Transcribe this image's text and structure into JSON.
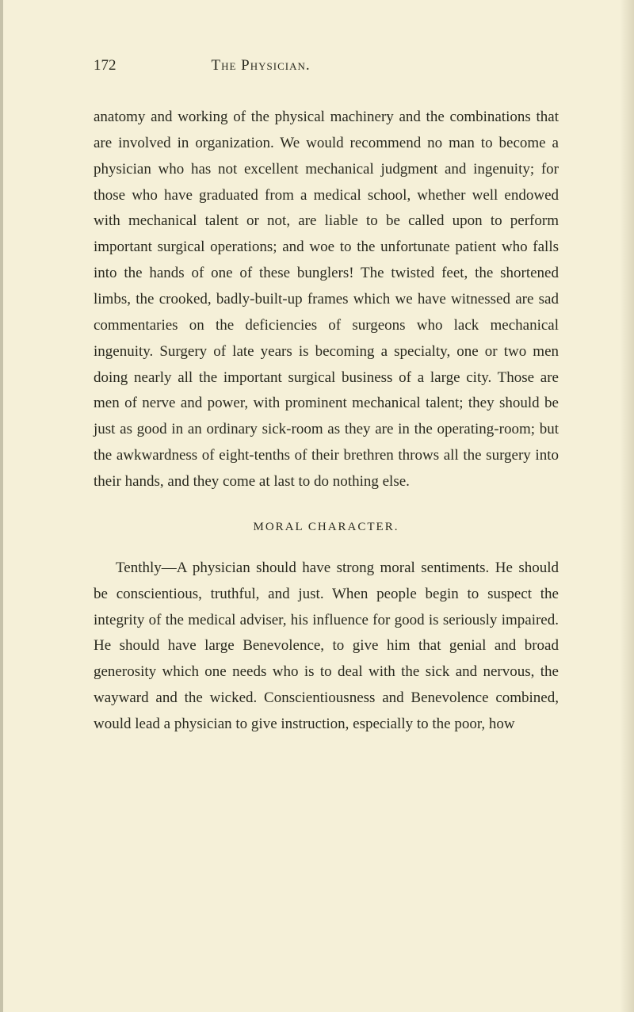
{
  "page_number": "172",
  "chapter_title": "The Physician.",
  "paragraph1": "anatomy and working of the physical machinery and the combinations that are involved in organization. We would recommend no man to become a physician who has not excellent mechanical judgment and ingenuity; for those who have graduated from a medical school, whether well endowed with mechanical talent or not, are liable to be called upon to perform important surgical operations; and woe to the unfortunate patient who falls into the hands of one of these bunglers! The twisted feet, the shortened limbs, the crooked, badly-built-up frames which we have witnessed are sad commentaries on the deficiencies of surgeons who lack mechanical ingenuity. Surgery of late years is becoming a specialty, one or two men doing nearly all the important surgical business of a large city. Those are men of nerve and power, with prominent mechanical talent; they should be just as good in an ordinary sick-room as they are in the operating-room; but the awkwardness of eight-tenths of their brethren throws all the surgery into their hands, and they come at last to do nothing else.",
  "section_heading": "MORAL CHARACTER.",
  "paragraph2": "Tenthly—A physician should have strong moral sentiments. He should be conscientious, truthful, and just. When people begin to suspect the integrity of the medical adviser, his influence for good is seriously impaired. He should have large Benevolence, to give him that genial and broad generosity which one needs who is to deal with the sick and nervous, the wayward and the wicked. Conscientiousness and Benevolence combined, would lead a physician to give instruction, especially to the poor, how",
  "colors": {
    "background": "#f5f0d8",
    "text": "#2a2a1f"
  },
  "typography": {
    "body_fontsize": 19,
    "heading_fontsize": 15,
    "line_height": 1.73
  }
}
